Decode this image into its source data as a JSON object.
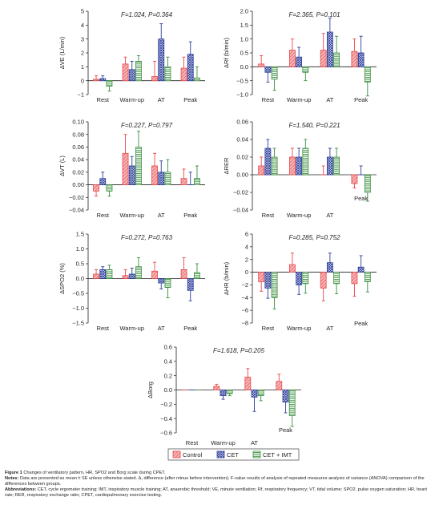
{
  "colors": {
    "control": "#e8484c",
    "cet": "#2d3e9c",
    "cet_imt": "#3a8f3e",
    "axis": "#231f20"
  },
  "legend": [
    "Control",
    "CET",
    "CET + IMT"
  ],
  "chart_data": [
    {
      "type": "bar",
      "id": "ve",
      "stat": "F=1.024, P=0.364",
      "ylabel": "ΔVE (L/min)",
      "categories": [
        "Rest",
        "Warm-up",
        "AT",
        "Peak"
      ],
      "yticks": [
        "5",
        "4",
        "3",
        "2",
        "1",
        "0",
        "−1"
      ],
      "ylim": [
        -1,
        5
      ],
      "series": [
        {
          "name": "Control",
          "values": [
            0.1,
            1.2,
            0.3,
            0.9
          ],
          "err": [
            0.25,
            0.5,
            1.1,
            0.8
          ]
        },
        {
          "name": "CET",
          "values": [
            0.15,
            0.8,
            3.0,
            1.9
          ],
          "err": [
            0.2,
            0.6,
            1.1,
            0.9
          ]
        },
        {
          "name": "CET + IMT",
          "values": [
            -0.4,
            1.4,
            1.0,
            0.2
          ],
          "err": [
            0.35,
            0.4,
            0.7,
            0.8
          ]
        }
      ]
    },
    {
      "type": "bar",
      "id": "rf",
      "stat": "F=2.365, P=0.101",
      "ylabel": "ΔRf (b/min)",
      "categories": [
        "Rest",
        "Warm-up",
        "AT",
        "Peak"
      ],
      "yticks": [
        "2.0",
        "1.5",
        "1.0",
        "0.5",
        "0.0",
        "−0.5",
        "−1.0"
      ],
      "ylim": [
        -1,
        2
      ],
      "series": [
        {
          "name": "Control",
          "values": [
            0.1,
            0.6,
            0.6,
            0.55
          ],
          "err": [
            0.3,
            0.4,
            0.6,
            0.45
          ]
        },
        {
          "name": "CET",
          "values": [
            -0.2,
            0.35,
            1.25,
            0.5
          ],
          "err": [
            0.35,
            0.35,
            0.5,
            0.6
          ]
        },
        {
          "name": "CET + IMT",
          "values": [
            -0.45,
            -0.2,
            0.5,
            -0.55
          ],
          "err": [
            0.4,
            0.3,
            0.6,
            0.5
          ]
        }
      ]
    },
    {
      "type": "bar",
      "id": "vt",
      "stat": "F=0.227, P=0.797",
      "ylabel": "ΔVT (L)",
      "categories": [
        "Rest",
        "Warm-up",
        "AT",
        "Peak"
      ],
      "yticks": [
        "0.10",
        "0.08",
        "0.06",
        "0.04",
        "0.02",
        "0.00",
        "−0.02",
        "−0.04"
      ],
      "ylim": [
        -0.04,
        0.1
      ],
      "series": [
        {
          "name": "Control",
          "values": [
            -0.01,
            0.05,
            0.03,
            0.01
          ],
          "err": [
            0.008,
            0.03,
            0.02,
            0.015
          ]
        },
        {
          "name": "CET",
          "values": [
            0.01,
            0.03,
            0.02,
            0.0
          ],
          "err": [
            0.01,
            0.015,
            0.018,
            0.02
          ]
        },
        {
          "name": "CET + IMT",
          "values": [
            -0.01,
            0.06,
            0.02,
            0.01
          ],
          "err": [
            0.008,
            0.025,
            0.02,
            0.02
          ]
        }
      ]
    },
    {
      "type": "bar",
      "id": "rer",
      "stat": "F=1.540, P=0.221",
      "ylabel": "ΔRER",
      "categories": [
        "Rest",
        "Warm-up",
        "AT",
        "Peak"
      ],
      "yticks": [
        "0.06",
        "0.04",
        "0.02",
        "0.00",
        "−0.02",
        "−0.04"
      ],
      "ylim": [
        -0.04,
        0.06
      ],
      "series": [
        {
          "name": "Control",
          "values": [
            0.01,
            0.02,
            0.0,
            -0.01
          ],
          "err": [
            0.01,
            0.01,
            0.01,
            0.005
          ]
        },
        {
          "name": "CET",
          "values": [
            0.03,
            0.02,
            0.02,
            0.0
          ],
          "err": [
            0.01,
            0.01,
            0.01,
            0.01
          ]
        },
        {
          "name": "CET + IMT",
          "values": [
            0.02,
            0.03,
            0.02,
            -0.02
          ],
          "err": [
            0.01,
            0.01,
            0.01,
            0.01
          ]
        }
      ]
    },
    {
      "type": "bar",
      "id": "spo2",
      "stat": "F=0.272, P=0.763",
      "ylabel": "ΔSPO2 (%)",
      "categories": [
        "Rest",
        "Warm-up",
        "AT",
        "Peak"
      ],
      "yticks": [
        "1.5",
        "1.0",
        "0.5",
        "0.0",
        "−0.5",
        "−1.0",
        "−1.5"
      ],
      "ylim": [
        -1.5,
        1.5
      ],
      "series": [
        {
          "name": "Control",
          "values": [
            0.15,
            0.1,
            0.25,
            0.3
          ],
          "err": [
            0.15,
            0.2,
            0.3,
            0.4
          ]
        },
        {
          "name": "CET",
          "values": [
            0.3,
            0.15,
            -0.15,
            -0.4
          ],
          "err": [
            0.1,
            0.2,
            0.2,
            0.35
          ]
        },
        {
          "name": "CET + IMT",
          "values": [
            0.3,
            0.4,
            -0.3,
            0.2
          ],
          "err": [
            0.15,
            0.3,
            0.35,
            0.3
          ]
        }
      ]
    },
    {
      "type": "bar",
      "id": "hr",
      "stat": "F=0.285, P=0.752",
      "ylabel": "ΔHR (b/min)",
      "categories": [
        "Rest",
        "Warm-up",
        "AT",
        "Peak"
      ],
      "yticks": [
        "6",
        "4",
        "2",
        "0",
        "−2",
        "−4",
        "−6",
        "−8"
      ],
      "ylim": [
        -8,
        6
      ],
      "series": [
        {
          "name": "Control",
          "values": [
            -1.5,
            1.2,
            -2.5,
            -1.8
          ],
          "err": [
            1.5,
            1.8,
            2.0,
            2.0
          ]
        },
        {
          "name": "CET",
          "values": [
            -2.5,
            -2.0,
            1.5,
            0.8
          ],
          "err": [
            1.6,
            1.5,
            1.5,
            1.8
          ]
        },
        {
          "name": "CET + IMT",
          "values": [
            -4.0,
            -1.8,
            -1.8,
            -1.5
          ],
          "err": [
            1.8,
            1.5,
            1.6,
            1.6
          ]
        }
      ]
    },
    {
      "type": "bar",
      "id": "borg",
      "stat": "F=1.618, P=0.205",
      "ylabel": "ΔBorg",
      "categories": [
        "Rest",
        "Warm-up",
        "AT",
        "Peak"
      ],
      "yticks": [
        "0.6",
        "0.4",
        "0.2",
        "0.0",
        "−0.2",
        "−0.4",
        "−0.6"
      ],
      "ylim": [
        -0.6,
        0.6
      ],
      "series": [
        {
          "name": "Control",
          "values": [
            0.0,
            0.05,
            0.18,
            0.12
          ],
          "err": [
            0.0,
            0.03,
            0.12,
            0.1
          ]
        },
        {
          "name": "CET",
          "values": [
            0.0,
            -0.08,
            -0.1,
            -0.17
          ],
          "err": [
            0.0,
            0.05,
            0.2,
            0.15
          ]
        },
        {
          "name": "CET + IMT",
          "values": [
            0.0,
            -0.05,
            -0.08,
            -0.36
          ],
          "err": [
            0.0,
            0.03,
            0.07,
            0.15
          ]
        }
      ]
    }
  ],
  "caption": {
    "figure_label": "Figure 1",
    "title": "Changes of ventilatory pattern, HR, SPO2 and Borg scale during CPET.",
    "notes_label": "Notes:",
    "notes": "Data are presented as mean ± SE unless otherwise stated. Δ, difference (after minus before intervention); F-value results of analysis of repeated measures analysis of variance (ANOVA) comparison of the differences between groups.",
    "abbr_label": "Abbreviations:",
    "abbreviations": "CET, cycle ergometer training; IMT, inspiratory muscle training; AT, anaerobic threshold; VE, minute ventilation; Rf, respiratory frequency; VT, tidal volume; SPO2, pulse oxygen saturation; HR, heart rate; RER, respiratory exchange ratio; CPET, cardiopulmonary exercise testing."
  }
}
